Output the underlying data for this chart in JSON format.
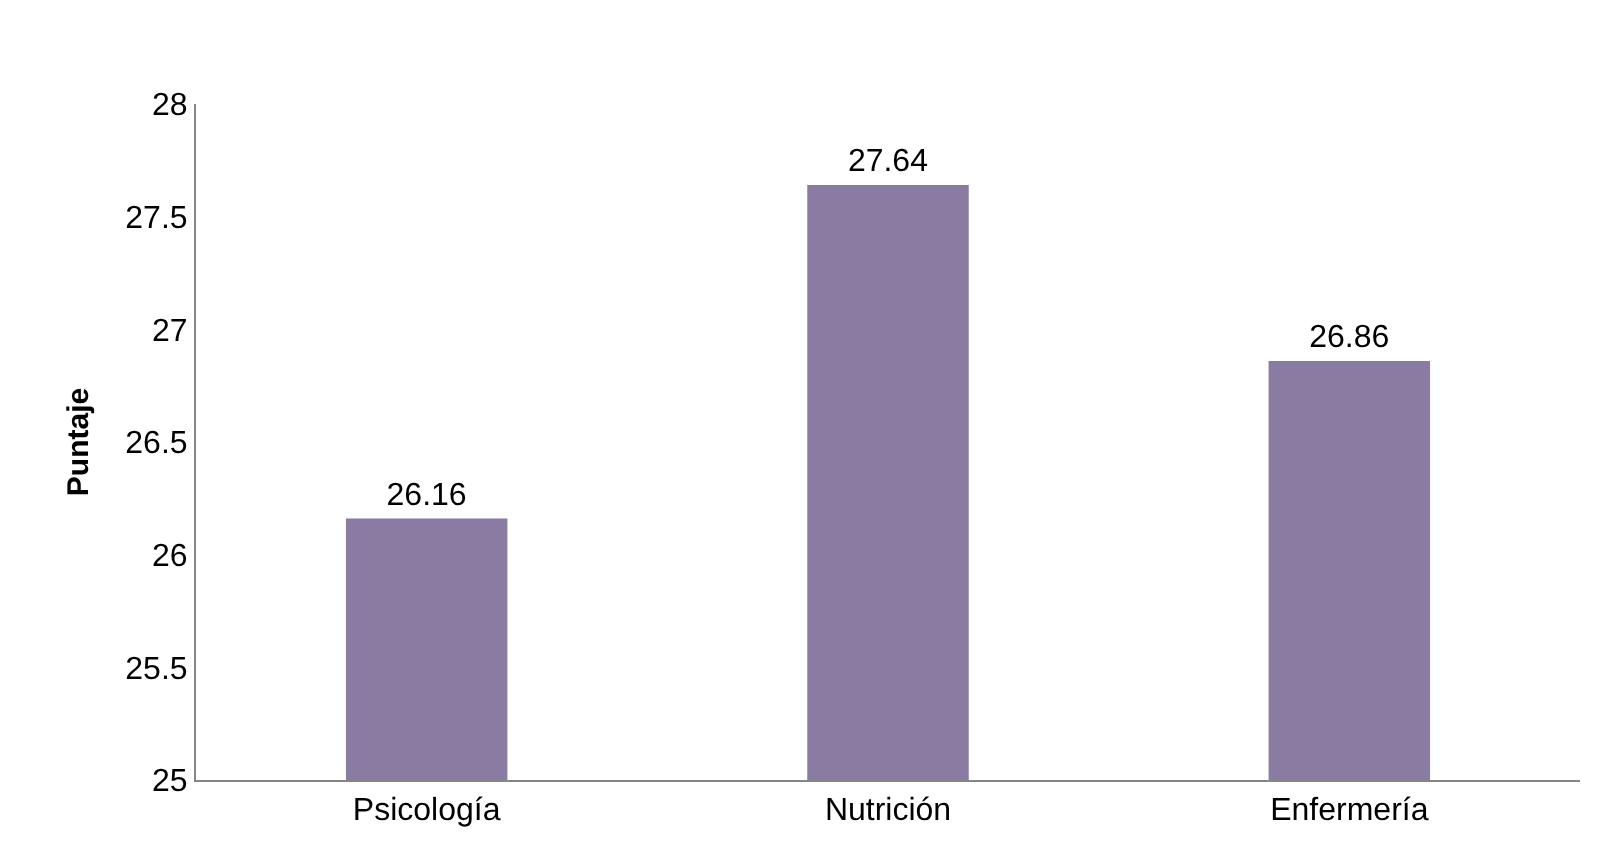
{
  "chart_data": {
    "type": "bar",
    "ylabel": "Puntaje",
    "categories": [
      "Psicología",
      "Nutrición",
      "Enfermería"
    ],
    "values": [
      26.16,
      27.64,
      26.86
    ],
    "color": "#8a7ba3",
    "ylim": [
      25,
      28
    ],
    "yticks": [
      25,
      25.5,
      26,
      26.5,
      27,
      27.5,
      28
    ],
    "grid": false,
    "data_labels": true
  }
}
